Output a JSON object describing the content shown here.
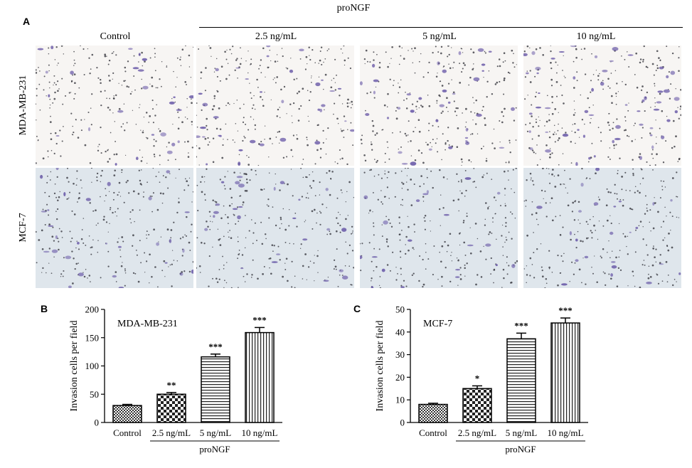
{
  "panelA": {
    "letter": "A",
    "group_label": "proNGF",
    "columns": [
      "Control",
      "2.5 ng/mL",
      "5 ng/mL",
      "10 ng/mL"
    ],
    "rows": [
      "MDA-MB-231",
      "MCF-7"
    ],
    "row_tints": [
      "#f7f5f3",
      "#dfe6ec"
    ],
    "stain_color": "#6a5aa8"
  },
  "chart_data": [
    {
      "type": "bar",
      "panel": "B",
      "title": "MDA-MB-231",
      "ylabel": "Invasion cells per field",
      "categories": [
        "Control",
        "2.5 ng/mL",
        "5 ng/mL",
        "10 ng/mL"
      ],
      "group_label": "proNGF",
      "values": [
        30,
        50,
        116,
        159
      ],
      "errors": [
        2,
        3,
        5,
        9
      ],
      "significance": [
        "",
        "**",
        "***",
        "***"
      ],
      "ylim": [
        0,
        200
      ],
      "yticks": [
        0,
        50,
        100,
        150,
        200
      ],
      "patterns": [
        "checker-fine",
        "checker",
        "horizontal",
        "vertical"
      ]
    },
    {
      "type": "bar",
      "panel": "C",
      "title": "MCF-7",
      "ylabel": "Invasion cells per field",
      "categories": [
        "Control",
        "2.5 ng/mL",
        "5 ng/mL",
        "10 ng/mL"
      ],
      "group_label": "proNGF",
      "values": [
        8,
        15,
        37,
        44
      ],
      "errors": [
        0.5,
        1.2,
        2.5,
        2.2
      ],
      "significance": [
        "",
        "*",
        "***",
        "***"
      ],
      "ylim": [
        0,
        50
      ],
      "yticks": [
        0,
        10,
        20,
        30,
        40,
        50
      ],
      "patterns": [
        "checker-fine",
        "checker",
        "horizontal",
        "vertical"
      ]
    }
  ]
}
